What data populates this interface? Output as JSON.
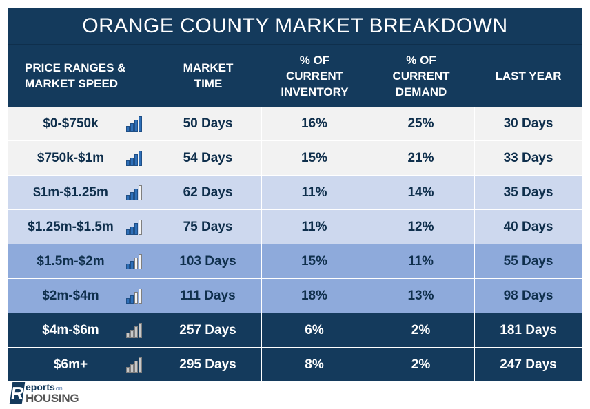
{
  "title": "ORANGE COUNTY MARKET BREAKDOWN",
  "headers": [
    "PRICE RANGES &\nMARKET SPEED",
    "MARKET\nTIME",
    "% OF\nCURRENT\nINVENTORY",
    "% OF\nCURRENT\nDEMAND",
    "LAST YEAR"
  ],
  "rows": [
    {
      "range": "$0-$750k",
      "market_time": "50 Days",
      "inventory": "16%",
      "demand": "25%",
      "last_year": "30 Days",
      "speed_level": 4,
      "speed_icon": "signal-bars-icon"
    },
    {
      "range": "$750k-$1m",
      "market_time": "54 Days",
      "inventory": "15%",
      "demand": "21%",
      "last_year": "33 Days",
      "speed_level": 4,
      "speed_icon": "signal-bars-icon"
    },
    {
      "range": "$1m-$1.25m",
      "market_time": "62 Days",
      "inventory": "11%",
      "demand": "14%",
      "last_year": "35 Days",
      "speed_level": 3,
      "speed_icon": "signal-bars-icon"
    },
    {
      "range": "$1.25m-$1.5m",
      "market_time": "75 Days",
      "inventory": "11%",
      "demand": "12%",
      "last_year": "40 Days",
      "speed_level": 3,
      "speed_icon": "signal-bars-icon"
    },
    {
      "range": "$1.5m-$2m",
      "market_time": "103 Days",
      "inventory": "15%",
      "demand": "11%",
      "last_year": "55 Days",
      "speed_level": 2,
      "speed_icon": "signal-bars-icon"
    },
    {
      "range": "$2m-$4m",
      "market_time": "111 Days",
      "inventory": "18%",
      "demand": "13%",
      "last_year": "98 Days",
      "speed_level": 2,
      "speed_icon": "signal-bars-icon"
    },
    {
      "range": "$4m-$6m",
      "market_time": "257 Days",
      "inventory": "6%",
      "demand": "2%",
      "last_year": "181 Days",
      "speed_level": 4,
      "speed_icon": "signal-bars-icon"
    },
    {
      "range": "$6m+",
      "market_time": "295 Days",
      "inventory": "8%",
      "demand": "2%",
      "last_year": "247 Days",
      "speed_level": 4,
      "speed_icon": "signal-bars-icon"
    }
  ],
  "logo": {
    "mark": "R",
    "reports": "eports",
    "on": "on",
    "housing": "HOUSING"
  },
  "colors": {
    "header": "#143a5c",
    "row_light": "#f2f2f2",
    "row_pale_blue": "#cdd8ee",
    "row_mid_blue": "#8eaadb",
    "row_dark": "#143a5c",
    "bar_blue": "#2e6fb8",
    "bar_gray": "#c8c8c8"
  }
}
